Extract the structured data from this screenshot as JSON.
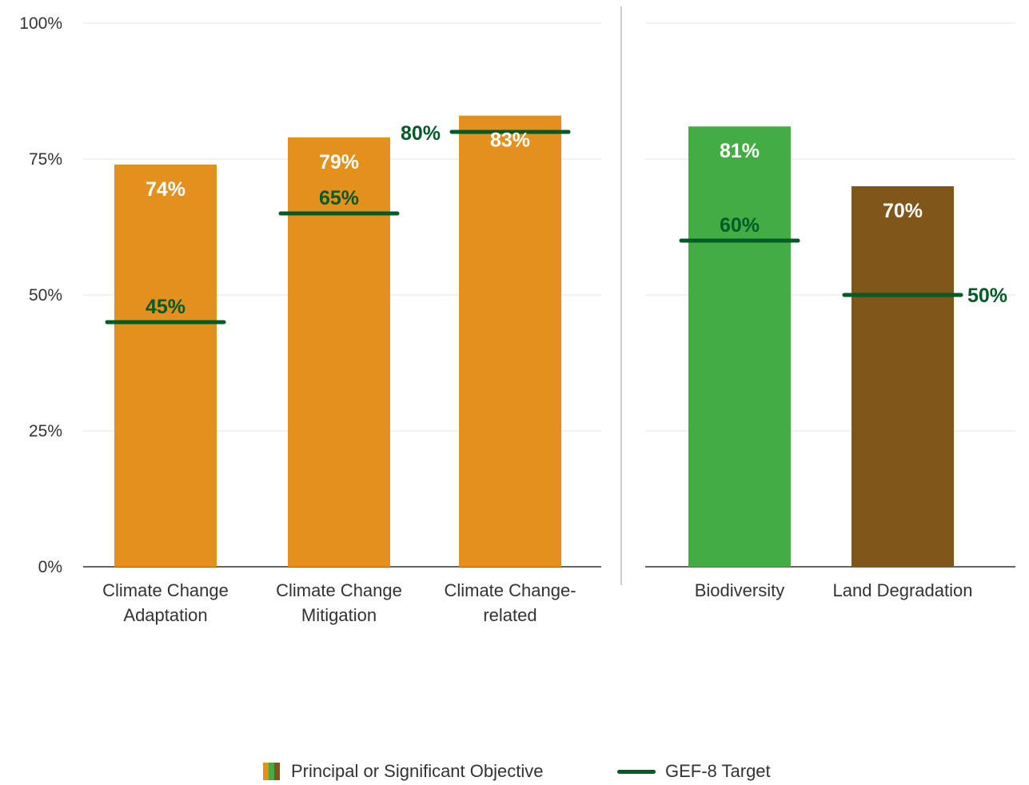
{
  "chart_data": {
    "type": "bar",
    "yaxis": {
      "ticks": [
        "0%",
        "25%",
        "50%",
        "75%",
        "100%"
      ],
      "tick_values": [
        0,
        25,
        50,
        75,
        100
      ],
      "ylim": [
        0,
        100
      ]
    },
    "grid": true,
    "panels": [
      {
        "categories": [
          [
            "Climate Change",
            "Adaptation"
          ],
          [
            "Climate Change",
            "Mitigation"
          ],
          [
            "Climate Change-",
            "related"
          ]
        ],
        "values": [
          74,
          79,
          83
        ],
        "value_labels": [
          "74%",
          "79%",
          "83%"
        ],
        "targets": [
          45,
          65,
          80
        ],
        "target_labels": [
          "45%",
          "65%",
          "80%"
        ],
        "colors": [
          "#E4901C",
          "#E4901C",
          "#E4901C"
        ]
      },
      {
        "categories": [
          [
            "Biodiversity"
          ],
          [
            "Land Degradation"
          ]
        ],
        "values": [
          81,
          70
        ],
        "value_labels": [
          "81%",
          "70%"
        ],
        "targets": [
          60,
          50
        ],
        "target_labels": [
          "60%",
          "50%"
        ],
        "colors": [
          "#44AC44",
          "#81561A"
        ]
      }
    ],
    "legend": {
      "position": "bottom",
      "items": [
        {
          "label": "Principal or Significant Objective",
          "kind": "bars"
        },
        {
          "label": "GEF-8 Target",
          "kind": "line"
        }
      ]
    },
    "colors": {
      "target": "#005B26",
      "value_label": "#FFFFFF",
      "grid": "#E6E6E6",
      "axis": "#333333",
      "separator": "#BBBBBB"
    }
  }
}
